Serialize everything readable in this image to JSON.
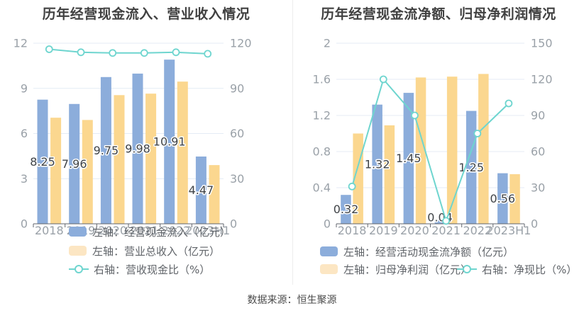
{
  "page": {
    "footer_source": "数据来源：恒生聚源"
  },
  "palette": {
    "background": "#ffffff",
    "grid_line": "#e4ebf5",
    "axis_line": "#62666d",
    "tick_label": "#9aa1a8",
    "value_label": "#3f4347",
    "legend_text": "#5f6368",
    "title_text": "#404040",
    "divider": "#ededed",
    "bar_blue": "#8caddb",
    "bar_yellow": "#fbd78f",
    "line_cyan": "#6ed5cf"
  },
  "chart_data": [
    {
      "type": "bar+line",
      "title": "历年经营现金流入、营业收入情况",
      "categories": [
        "2018",
        "2019",
        "2020",
        "2021",
        "2022",
        "2023H1"
      ],
      "left_axis": {
        "min": 0,
        "max": 12,
        "ticks": [
          0,
          3,
          6,
          9,
          12
        ]
      },
      "right_axis": {
        "min": 0,
        "max": 120,
        "ticks": [
          0,
          30,
          60,
          90,
          120
        ]
      },
      "grid": true,
      "legend_position": "bottom",
      "series": [
        {
          "id": "cash-inflow",
          "name": "左轴：经营现金流入（亿元）",
          "type": "bar",
          "axis": "left",
          "color": "#8caddb",
          "values": [
            8.25,
            7.96,
            9.75,
            9.98,
            10.91,
            4.47
          ],
          "data_labels": [
            "8.25",
            "7.96",
            "9.75",
            "9.98",
            "10.91",
            "4.47"
          ]
        },
        {
          "id": "total-revenue",
          "name": "左轴：营业总收入（亿元）",
          "type": "bar",
          "axis": "left",
          "color": "#fbd78f",
          "legend_color": "#fce6c3",
          "values": [
            7.05,
            6.9,
            8.55,
            8.65,
            9.45,
            3.9
          ]
        },
        {
          "id": "cash-to-revenue-ratio",
          "name": "右轴：营收现金比（%）",
          "type": "line",
          "axis": "right",
          "color": "#6ed5cf",
          "values": [
            116,
            114,
            113.5,
            113.5,
            114,
            113
          ]
        }
      ]
    },
    {
      "type": "bar+line",
      "title": "历年经营现金流净额、归母净利润情况",
      "categories": [
        "2018",
        "2019",
        "2020",
        "2021",
        "2022",
        "2023H1"
      ],
      "left_axis": {
        "min": 0,
        "max": 2,
        "ticks": [
          0,
          0.4,
          0.8,
          1.2,
          1.6,
          2
        ]
      },
      "right_axis": {
        "min": 0,
        "max": 150,
        "ticks": [
          0,
          30,
          60,
          90,
          120,
          150
        ]
      },
      "grid": true,
      "legend_position": "bottom",
      "series": [
        {
          "id": "net-operating-cashflow",
          "name": "左轴：经营活动现金流净额（亿元）",
          "type": "bar",
          "axis": "left",
          "color": "#8caddb",
          "values": [
            0.32,
            1.32,
            1.45,
            0.04,
            1.25,
            0.56
          ],
          "data_labels": [
            "0.32",
            "1.32",
            "1.45",
            "0.04",
            "1.25",
            "0.56"
          ]
        },
        {
          "id": "net-profit",
          "name": "左轴：归母净利润（亿元）",
          "type": "bar",
          "axis": "left",
          "color": "#fbd78f",
          "legend_color": "#fce6c3",
          "values": [
            1.0,
            1.09,
            1.62,
            1.63,
            1.66,
            0.55
          ]
        },
        {
          "id": "net-cash-ratio",
          "name": "右轴：净现比（%）",
          "type": "line",
          "axis": "right",
          "color": "#6ed5cf",
          "values": [
            31,
            120,
            90,
            2.4,
            75,
            100
          ]
        }
      ]
    }
  ]
}
